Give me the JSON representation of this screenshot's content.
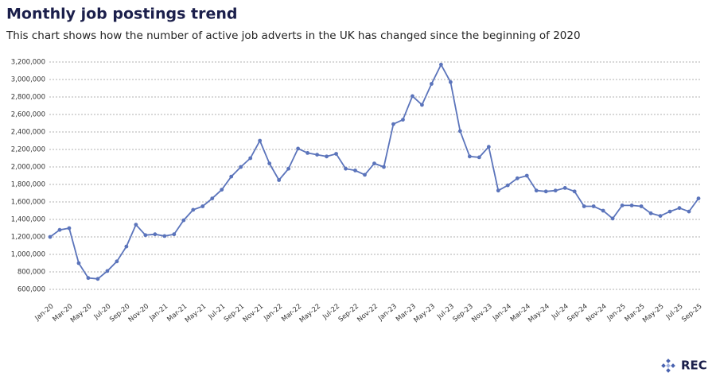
{
  "chart_data": {
    "type": "line",
    "title": "Monthly job postings trend",
    "subtitle": "This chart shows how the number of active job adverts in the UK has changed since the beginning of 2020",
    "categories": [
      "Jan-20",
      null,
      "Mar-20",
      null,
      "May-20",
      null,
      "Jul-20",
      null,
      "Sep-20",
      null,
      "Nov-20",
      null,
      "Jan-21",
      null,
      "Mar-21",
      null,
      "May-21",
      null,
      "Jul-21",
      null,
      "Sep-21",
      null,
      "Nov-21",
      null,
      "Jan-22",
      null,
      "Mar-22",
      null,
      "May-22",
      null,
      "Jul-22",
      null,
      "Sep-22",
      null,
      "Nov-22",
      null,
      "Jan-23",
      null,
      "Mar-23",
      null,
      "May-23",
      null,
      "Jul-23",
      null,
      "Sep-23",
      null,
      "Nov-23",
      null,
      "Jan-24",
      null,
      "Mar-24",
      null,
      "May-24",
      null,
      "Jul-24",
      null,
      "Sep-24",
      null,
      "Nov-24",
      null,
      "Jan-25",
      null,
      "Mar-25",
      null,
      "May-25",
      null,
      "Jul-25",
      null,
      "Sep-25"
    ],
    "series": [
      {
        "color": "#5b74bb",
        "values": [
          1200000,
          1280000,
          1300000,
          900000,
          730000,
          720000,
          810000,
          920000,
          1090000,
          1340000,
          1220000,
          1230000,
          1210000,
          1230000,
          1390000,
          1510000,
          1550000,
          1640000,
          1740000,
          1890000,
          2000000,
          2100000,
          2300000,
          2040000,
          1850000,
          1980000,
          2210000,
          2160000,
          2140000,
          2120000,
          2150000,
          1980000,
          1960000,
          1910000,
          2040000,
          2000000,
          2490000,
          2540000,
          2810000,
          2710000,
          2950000,
          3170000,
          2970000,
          2410000,
          2120000,
          2110000,
          2230000,
          1730000,
          1790000,
          1870000,
          1900000,
          1730000,
          1720000,
          1730000,
          1760000,
          1720000,
          1550000,
          1550000,
          1500000,
          1410000,
          1560000,
          1560000,
          1550000,
          1470000,
          1440000,
          1490000,
          1530000,
          1490000,
          1640000
        ]
      }
    ],
    "ylim": [
      550000,
      3250000
    ],
    "yticks": [
      {
        "value": 600000,
        "label": "600,000"
      },
      {
        "value": 800000,
        "label": "800,000"
      },
      {
        "value": 1000000,
        "label": "1,000,000"
      },
      {
        "value": 1200000,
        "label": "1,200,000"
      },
      {
        "value": 1400000,
        "label": "1,400,000"
      },
      {
        "value": 1600000,
        "label": "1,600,000"
      },
      {
        "value": 1800000,
        "label": "1,800,000"
      },
      {
        "value": 2000000,
        "label": "2,000,000"
      },
      {
        "value": 2200000,
        "label": "2,200,000"
      },
      {
        "value": 2400000,
        "label": "2,400,000"
      },
      {
        "value": 2600000,
        "label": "2,600,000"
      },
      {
        "value": 2800000,
        "label": "2,800,000"
      },
      {
        "value": 3000000,
        "label": "3,000,000"
      },
      {
        "value": 3200000,
        "label": "3,200,000"
      }
    ],
    "grid": true
  },
  "footer": {
    "logo": "REC"
  }
}
